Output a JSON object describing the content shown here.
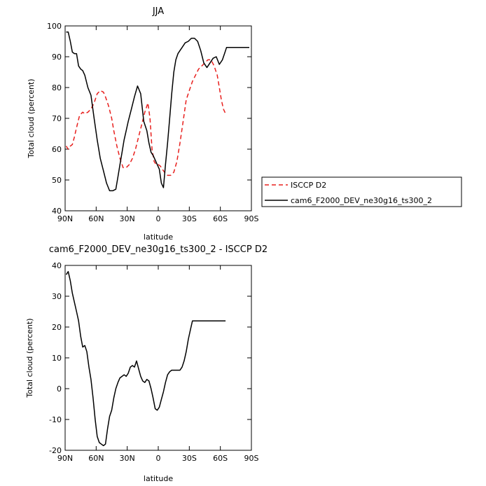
{
  "chart_data": [
    {
      "type": "line",
      "title": "JJA",
      "xlabel": "latitude",
      "ylabel": "Total cloud (percent)",
      "xlim": [
        90,
        -90
      ],
      "ylim": [
        40,
        100
      ],
      "x_direction": "north-to-south (90N on left, 90S on right)",
      "x_ticks": [
        {
          "value": 90,
          "label": "90N"
        },
        {
          "value": 60,
          "label": "60N"
        },
        {
          "value": 30,
          "label": "30N"
        },
        {
          "value": 0,
          "label": "0"
        },
        {
          "value": -30,
          "label": "30S"
        },
        {
          "value": -60,
          "label": "60S"
        },
        {
          "value": -90,
          "label": "90S"
        }
      ],
      "y_ticks": [
        40,
        50,
        60,
        70,
        80,
        90,
        100
      ],
      "grid": false,
      "legend_placement": "right-outside",
      "series": [
        {
          "name": "ISCCP D2",
          "color": "#e8201e",
          "style": "dashed",
          "x": [
            89,
            87,
            85,
            83,
            81,
            79,
            76,
            73,
            71,
            68,
            65,
            62,
            59,
            56,
            53,
            51,
            48,
            45,
            43,
            40,
            37,
            34,
            31,
            28,
            25,
            22,
            19,
            16,
            13,
            10,
            8,
            6,
            4,
            2,
            0,
            -2,
            -4,
            -6,
            -9,
            -12,
            -15,
            -18,
            -21,
            -24,
            -27,
            -30,
            -33,
            -36,
            -39,
            -42,
            -45,
            -48,
            -51,
            -54,
            -57,
            -59,
            -61,
            -63,
            -65
          ],
          "y": [
            61,
            60,
            61,
            61.5,
            64,
            67,
            71,
            72,
            71.5,
            72,
            73,
            75,
            78,
            79,
            78.5,
            77,
            74,
            70,
            66,
            61,
            57,
            54,
            54,
            55,
            57,
            60,
            64,
            68,
            72,
            75,
            70,
            60,
            56,
            55,
            55,
            54.5,
            53.5,
            52.5,
            51.5,
            51.5,
            52.5,
            56,
            62,
            69,
            76,
            79,
            82,
            84,
            86,
            87,
            88,
            89,
            89,
            87,
            84,
            80,
            76,
            73,
            71.5
          ]
        },
        {
          "name": "cam6_F2000_DEV_ne30g16_ts300_2",
          "color": "#000000",
          "style": "solid",
          "x": [
            89,
            87,
            85,
            83,
            81,
            79,
            77,
            75,
            73,
            71,
            68,
            65,
            62,
            59,
            56,
            53,
            50,
            47,
            44,
            41,
            39,
            37,
            35,
            33,
            31,
            29,
            26,
            23,
            20,
            17,
            14,
            11,
            9,
            7,
            5,
            3,
            1,
            -1,
            -3,
            -5,
            -7,
            -9,
            -11,
            -13,
            -15,
            -17,
            -19,
            -21,
            -23,
            -26,
            -29,
            -32,
            -35,
            -38,
            -41,
            -44,
            -47,
            -50,
            -53,
            -56,
            -59,
            -62,
            -64,
            -66,
            -68,
            -70,
            -72,
            -74,
            -76,
            -78,
            -80,
            -82,
            -84,
            -86,
            -88
          ],
          "y": [
            98,
            98,
            95,
            91.5,
            91,
            91,
            87,
            86,
            85.5,
            84,
            80,
            77.5,
            70,
            63,
            57,
            53,
            49,
            46.5,
            46.5,
            47,
            51,
            55,
            59,
            63,
            66,
            69,
            73,
            77,
            80.5,
            78,
            69,
            66,
            62,
            59,
            58,
            56.5,
            55,
            53.5,
            49,
            47.5,
            55,
            62,
            70,
            78,
            85,
            89,
            91,
            92,
            93,
            94.5,
            95,
            96,
            96,
            95,
            92,
            88,
            86.5,
            88,
            89.5,
            90,
            87.5,
            89,
            91,
            93,
            93,
            93,
            93,
            93,
            93,
            93,
            93,
            93,
            93,
            93,
            93
          ],
          "note": "end of series near 90S follows plotted curve"
        }
      ]
    },
    {
      "type": "line",
      "title": "cam6_F2000_DEV_ne30g16_ts300_2 - ISCCP D2",
      "xlabel": "latitude",
      "ylabel": "Total cloud (percent)",
      "xlim": [
        90,
        -90
      ],
      "ylim": [
        -20,
        40
      ],
      "x_ticks": [
        {
          "value": 90,
          "label": "90N"
        },
        {
          "value": 60,
          "label": "60N"
        },
        {
          "value": 30,
          "label": "30N"
        },
        {
          "value": 0,
          "label": "0"
        },
        {
          "value": -30,
          "label": "30S"
        },
        {
          "value": -60,
          "label": "60S"
        },
        {
          "value": -90,
          "label": "90S"
        }
      ],
      "y_ticks": [
        -20,
        -10,
        0,
        10,
        20,
        30,
        40
      ],
      "grid": false,
      "series": [
        {
          "color": "#000000",
          "style": "solid",
          "x": [
            89,
            87,
            85,
            83,
            81,
            79,
            77,
            75,
            73,
            71,
            69,
            67,
            65,
            63,
            61,
            59,
            57,
            55,
            53,
            51,
            49,
            47,
            45,
            43,
            41,
            39,
            37,
            35,
            33,
            31,
            29,
            27,
            25,
            23,
            21,
            19,
            17,
            15,
            13,
            11,
            9,
            7,
            5,
            3,
            1,
            -1,
            -3,
            -5,
            -7,
            -9,
            -11,
            -13,
            -15,
            -17,
            -19,
            -21,
            -23,
            -25,
            -27,
            -29,
            -31,
            -33,
            -35,
            -37,
            -39,
            -41,
            -43,
            -45,
            -47,
            -49,
            -51,
            -53,
            -55,
            -57,
            -59,
            -61,
            -63,
            -65
          ],
          "y": [
            37,
            38,
            35,
            31,
            28,
            25,
            22,
            17,
            13.5,
            14,
            12,
            7,
            3,
            -3,
            -10,
            -15.5,
            -17.5,
            -18,
            -18.5,
            -18,
            -13,
            -9,
            -7,
            -3,
            0,
            2,
            3.5,
            4,
            4.5,
            4,
            5,
            7,
            7.5,
            7,
            9,
            6.5,
            4,
            2.5,
            2,
            3,
            2.5,
            0,
            -3,
            -6.5,
            -7,
            -6,
            -3.5,
            -1,
            2,
            4.5,
            5.5,
            6,
            6,
            6,
            6,
            6,
            7,
            9,
            12,
            16,
            19,
            22,
            22,
            22,
            22,
            22,
            22,
            22,
            22,
            22,
            22,
            22,
            22,
            22,
            22,
            22,
            22,
            22
          ],
          "note": "series ends near 65S"
        }
      ]
    }
  ]
}
